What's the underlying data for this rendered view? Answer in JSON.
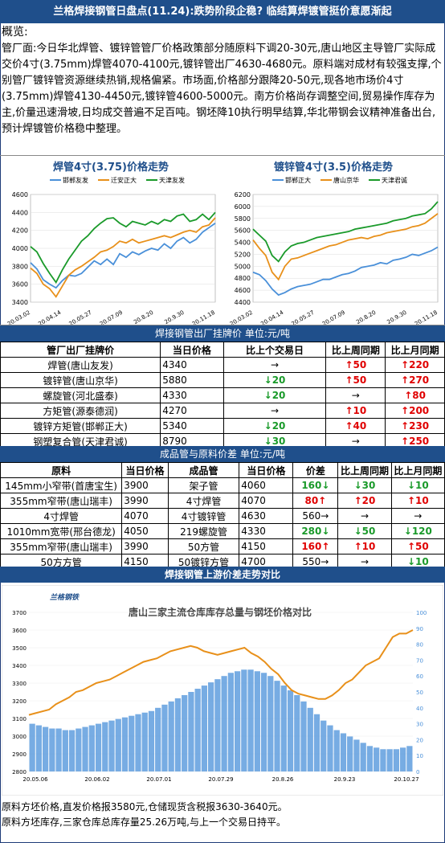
{
  "title": "兰格焊接钢管日盘点(11.24):跌势阶段企稳? 临结算焊镀管挺价意愿渐起",
  "overview": {
    "heading": "概览:",
    "text": "管厂面:今日华北焊管、镀锌管管厂价格政策部分随原料下调20-30元,唐山地区主导管厂实际成交价4寸(3.75mm)焊管4070-4100元,镀锌管出厂4630-4680元。原料端对成材有较强支撑,个别管厂镀锌管资源继续热销,规格偏紧。市场面,价格部分跟降20-50元,现各地市场价4寸(3.75mm)焊管4130-4450元,镀锌管4600-5000元。南方价格尚存调整空间,贸易操作库存为主,价量迅速滑坡,日均成交普遍不足百吨。钢坯降10执行明早结算,华北带钢会议精神准备出台,预计焊镀管价格稳中整理。"
  },
  "colors": {
    "bar": "#1f4f8b",
    "up": "#e00000",
    "down": "#1a9a2a",
    "blue": "#4a90d9",
    "orange": "#e8901a",
    "green": "#1a9a2a"
  },
  "chart_data": [
    {
      "type": "line",
      "title": "焊管4寸(3.75)价格走势",
      "x_ticks": [
        "20.03.02",
        "20.04.14",
        "20.05.27",
        "20.07.09",
        "20.8.20",
        "20.9.30",
        "20.11.18"
      ],
      "y_ticks": [
        3400,
        3600,
        3800,
        4000,
        4200,
        4400,
        4600
      ],
      "ylim": [
        3400,
        4600
      ],
      "legend_position": "top",
      "series": [
        {
          "name": "邯郸友发",
          "color": "#4a90d9",
          "values": [
            3840,
            3770,
            3650,
            3600,
            3560,
            3640,
            3700,
            3690,
            3720,
            3790,
            3860,
            3820,
            3880,
            3820,
            3940,
            3900,
            3960,
            3930,
            3970,
            4000,
            3980,
            4050,
            4000,
            4080,
            4120,
            4060,
            4100,
            4180,
            4230,
            4280
          ]
        },
        {
          "name": "迁安正大",
          "color": "#e8901a",
          "values": [
            3780,
            3720,
            3600,
            3550,
            3460,
            3580,
            3700,
            3760,
            3800,
            3850,
            3900,
            3960,
            3980,
            4020,
            4080,
            4060,
            4100,
            4060,
            4080,
            4100,
            4120,
            4140,
            4120,
            4150,
            4180,
            4200,
            4180,
            4240,
            4260,
            4340
          ]
        },
        {
          "name": "天津友发",
          "color": "#1a9a2a",
          "values": [
            4020,
            3960,
            3830,
            3720,
            3620,
            3760,
            3880,
            3980,
            4080,
            4140,
            4220,
            4280,
            4330,
            4340,
            4280,
            4240,
            4300,
            4280,
            4260,
            4300,
            4270,
            4320,
            4300,
            4360,
            4380,
            4300,
            4320,
            4380,
            4320,
            4400
          ]
        }
      ]
    },
    {
      "type": "line",
      "title": "镀锌管4寸(3.5)价格走势",
      "x_ticks": [
        "20.03.02",
        "20.04.14",
        "20.05.27",
        "20.07.09",
        "20.8.20",
        "20.9.30",
        "20.11.18"
      ],
      "y_ticks": [
        4400,
        4600,
        4800,
        5000,
        5200,
        5400,
        5600,
        5800,
        6000,
        6200
      ],
      "ylim": [
        4400,
        6200
      ],
      "legend_position": "top",
      "series": [
        {
          "name": "邯郸正大",
          "color": "#4a90d9",
          "values": [
            4900,
            4860,
            4760,
            4620,
            4520,
            4560,
            4620,
            4660,
            4680,
            4700,
            4740,
            4780,
            4780,
            4820,
            4860,
            4880,
            4920,
            4980,
            5000,
            5020,
            5060,
            5040,
            5100,
            5120,
            5150,
            5200,
            5180,
            5220,
            5260,
            5320
          ]
        },
        {
          "name": "唐山京华",
          "color": "#e8901a",
          "values": [
            5440,
            5300,
            5180,
            4900,
            4780,
            5000,
            5120,
            5140,
            5180,
            5220,
            5260,
            5300,
            5340,
            5360,
            5400,
            5440,
            5460,
            5480,
            5460,
            5500,
            5520,
            5560,
            5580,
            5600,
            5620,
            5660,
            5680,
            5720,
            5800,
            5880
          ]
        },
        {
          "name": "天津君诚",
          "color": "#1a9a2a",
          "values": [
            5620,
            5520,
            5420,
            5180,
            5080,
            5240,
            5340,
            5380,
            5400,
            5440,
            5480,
            5500,
            5520,
            5540,
            5560,
            5580,
            5620,
            5640,
            5660,
            5680,
            5700,
            5720,
            5760,
            5780,
            5800,
            5840,
            5860,
            5880,
            5960,
            6080
          ]
        }
      ]
    },
    {
      "type": "line",
      "title": "唐山三家主流仓库库存总量与钢坯价格对比",
      "x_ticks": [
        "20.05.06",
        "20.06.02",
        "20.07.01",
        "20.07.29",
        "20.8.26",
        "20.9.23",
        "20.10.27"
      ],
      "y_ticks_left": [
        2800,
        2900,
        3000,
        3100,
        3200,
        3300,
        3400,
        3500,
        3600,
        3700
      ],
      "y_ticks_right": [
        0,
        10,
        20,
        30,
        40,
        50,
        60,
        70,
        80,
        90,
        100
      ],
      "ylim_left": [
        2800,
        3700
      ],
      "ylim_right": [
        0,
        100
      ],
      "series": [
        {
          "name": "钢坯价格",
          "axis": "left",
          "color": "#e8901a",
          "values": [
            3120,
            3130,
            3140,
            3150,
            3180,
            3200,
            3220,
            3250,
            3260,
            3280,
            3300,
            3310,
            3320,
            3340,
            3360,
            3380,
            3400,
            3420,
            3430,
            3440,
            3460,
            3480,
            3490,
            3500,
            3510,
            3500,
            3480,
            3470,
            3460,
            3470,
            3480,
            3490,
            3500,
            3470,
            3450,
            3420,
            3380,
            3350,
            3300,
            3260,
            3240,
            3230,
            3220,
            3210,
            3210,
            3230,
            3260,
            3300,
            3320,
            3360,
            3400,
            3420,
            3440,
            3500,
            3560,
            3580,
            3580,
            3600
          ]
        },
        {
          "name": "库存总量",
          "axis": "right",
          "color": "#4a90d9",
          "values": [
            30,
            29,
            28,
            27,
            27,
            26,
            26,
            27,
            28,
            29,
            30,
            31,
            32,
            33,
            34,
            35,
            36,
            37,
            38,
            40,
            42,
            44,
            46,
            48,
            50,
            52,
            54,
            56,
            58,
            60,
            62,
            63,
            64,
            64,
            63,
            62,
            60,
            57,
            54,
            51,
            48,
            44,
            40,
            36,
            32,
            29,
            26,
            24,
            22,
            20,
            18,
            16,
            15,
            14,
            14,
            14,
            15,
            16
          ]
        }
      ]
    }
  ],
  "list_table": {
    "section": "焊接钢管出厂挂牌价  单位:元/吨",
    "headers": [
      "管厂出厂挂牌价",
      "当日价格",
      "比上个交易日",
      "比上周同期",
      "比上月同期"
    ],
    "rows": [
      {
        "name": "焊管(唐山友发)",
        "price": "4340",
        "day": "→",
        "day_dir": "flat",
        "week": "↑50",
        "week_dir": "up",
        "month": "↑220",
        "month_dir": "up"
      },
      {
        "name": "镀锌管(唐山京华)",
        "price": "5880",
        "day": "↓20",
        "day_dir": "dn",
        "week": "↑50",
        "week_dir": "up",
        "month": "↑270",
        "month_dir": "up"
      },
      {
        "name": "螺旋管(河北盛泰)",
        "price": "4330",
        "day": "↓20",
        "day_dir": "dn",
        "week": "→",
        "week_dir": "flat",
        "month": "↑80",
        "month_dir": "up"
      },
      {
        "name": "方矩管(源泰德润)",
        "price": "4270",
        "day": "→",
        "day_dir": "flat",
        "week": "↑10",
        "week_dir": "up",
        "month": "↑200",
        "month_dir": "up"
      },
      {
        "name": "镀锌方矩管(邯郸正大)",
        "price": "5340",
        "day": "↓20",
        "day_dir": "dn",
        "week": "↑40",
        "week_dir": "up",
        "month": "↑230",
        "month_dir": "up"
      },
      {
        "name": "钢塑复合管(天津君诚)",
        "price": "8790",
        "day": "↓30",
        "day_dir": "dn",
        "week": "→",
        "week_dir": "flat",
        "month": "↑250",
        "month_dir": "up"
      }
    ]
  },
  "spread_table": {
    "section": "成品管与原料价差  单位:元/吨",
    "headers": [
      "原料",
      "当日价格",
      "成品管",
      "当日价格",
      "价差",
      "比上周同期",
      "比上月同期"
    ],
    "rows": [
      {
        "raw": "145mm小窄带(首唐宝生)",
        "raw_price": "3900",
        "prod": "架子管",
        "prod_price": "4060",
        "spread": "160↓",
        "spread_dir": "dn",
        "week": "↓30",
        "week_dir": "dn",
        "month": "↓10",
        "month_dir": "dn"
      },
      {
        "raw": "355mm窄带(唐山瑞丰)",
        "raw_price": "3990",
        "prod": "4寸焊管",
        "prod_price": "4070",
        "spread": "80↑",
        "spread_dir": "up",
        "week": "↑20",
        "week_dir": "up",
        "month": "↑10",
        "month_dir": "up"
      },
      {
        "raw": "4寸焊管",
        "raw_price": "4070",
        "prod": "4寸镀锌管",
        "prod_price": "4630",
        "spread": "560→",
        "spread_dir": "flat",
        "week": "→",
        "week_dir": "flat",
        "month": "→",
        "month_dir": "flat"
      },
      {
        "raw": "1010mm宽带(邢台德龙)",
        "raw_price": "4050",
        "prod": "219螺旋管",
        "prod_price": "4330",
        "spread": "280↓",
        "spread_dir": "dn",
        "week": "↓50",
        "week_dir": "dn",
        "month": "↓120",
        "month_dir": "dn"
      },
      {
        "raw": "355mm窄带(唐山瑞丰)",
        "raw_price": "3990",
        "prod": "50方管",
        "prod_price": "4150",
        "spread": "160↑",
        "spread_dir": "up",
        "week": "↑10",
        "week_dir": "up",
        "month": "↑50",
        "month_dir": "up"
      },
      {
        "raw": "50方方管",
        "raw_price": "4150",
        "prod": "50镀锌方管",
        "prod_price": "4700",
        "spread": "550→",
        "spread_dir": "flat",
        "week": "→",
        "week_dir": "flat",
        "month": "↓10",
        "month_dir": "dn"
      }
    ]
  },
  "compare_section": "焊接钢管上游价差走势对比",
  "logo_text": "兰格钢铁",
  "footer": [
    "原料方坯价格,直发价格报3580元,仓储现货含税报3630-3640元。",
    "原料方坯库存,三家仓库总库存量25.26万吨,与上一个交易日持平。"
  ]
}
